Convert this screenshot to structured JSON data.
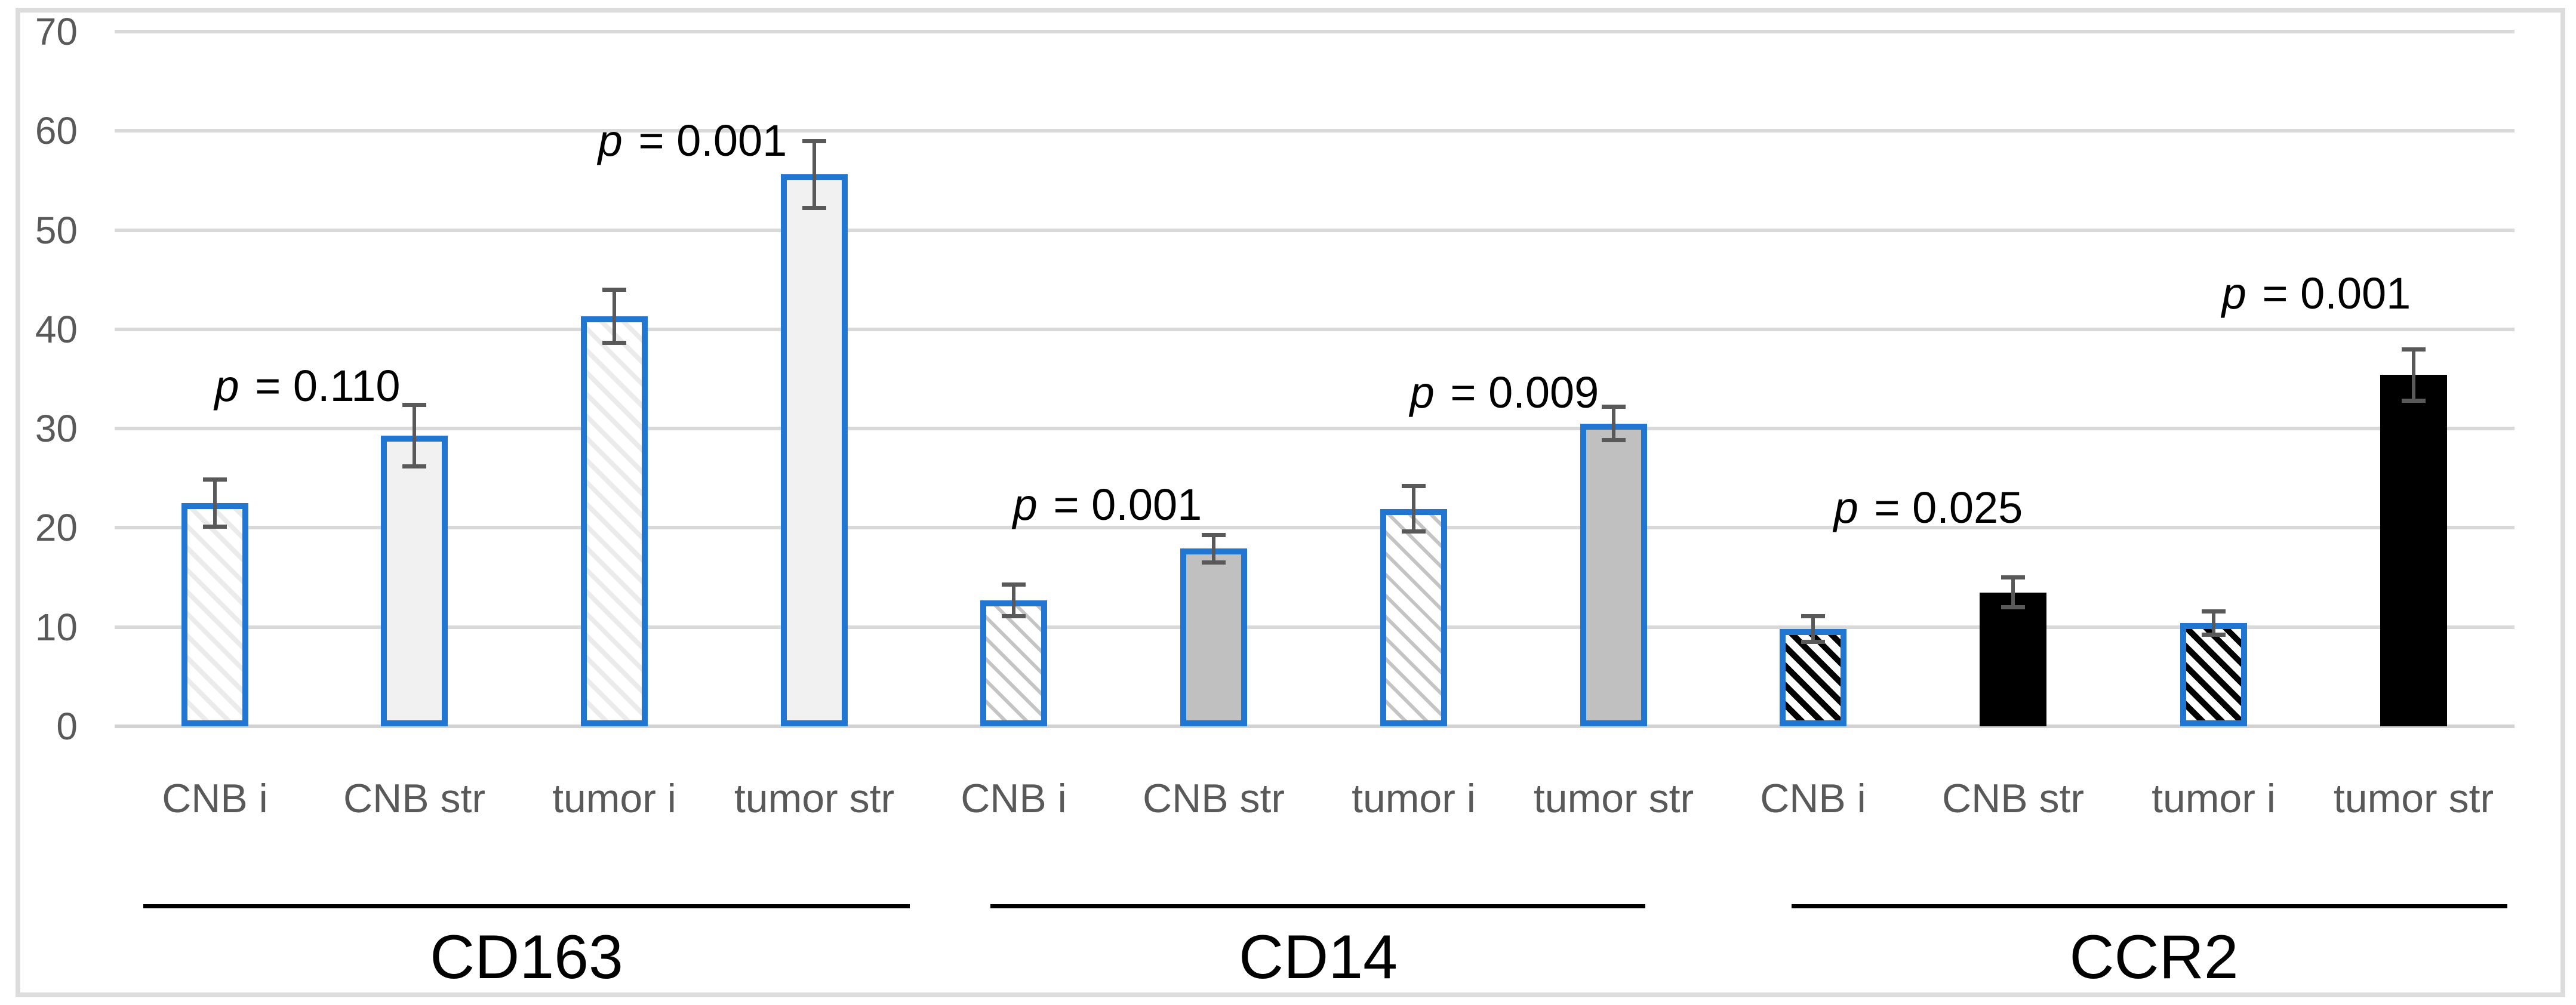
{
  "chart_data": {
    "type": "bar",
    "title": "",
    "xlabel": "",
    "ylabel": "",
    "ylim": [
      0,
      70
    ],
    "yticks": [
      0,
      10,
      20,
      30,
      40,
      50,
      60,
      70
    ],
    "grid": true,
    "legend_position": "none",
    "colors": {
      "bar_border_blue": "#2176D1",
      "error_bar": "#595959",
      "gridline": "#D9D9D9",
      "axis_text": "#595959",
      "annotation_text": "#000000",
      "solid_light_fill": "#F1F1F1",
      "solid_mid_fill": "#C0C0C0",
      "solid_black_fill": "#000000",
      "hatch_light_line": "#EBEBEB",
      "hatch_mid_line": "#C4C4C4",
      "hatch_black_line": "#000000",
      "frame_border": "#DCDCDC"
    },
    "groups": [
      {
        "name": "CD163",
        "categories": [
          "CNB i",
          "CNB str",
          "tumor i",
          "tumor str"
        ],
        "values": [
          22.5,
          29.3,
          41.3,
          55.6
        ],
        "errors": [
          2.6,
          3.3,
          2.9,
          3.6
        ],
        "styles": [
          "hatch-light",
          "solid-light",
          "hatch-light",
          "solid-light"
        ],
        "p_annotations": [
          {
            "prefix": "p",
            "text": " = 0.110",
            "pair": [
              0,
              1
            ],
            "label_x": 515,
            "label_y": 34.3
          },
          {
            "prefix": "p",
            "text": " = 0.001",
            "pair": [
              2,
              3
            ],
            "label_x": 1160,
            "label_y": 59.0
          }
        ]
      },
      {
        "name": "CD14",
        "categories": [
          "CNB i",
          "CNB str",
          "tumor i",
          "tumor str"
        ],
        "values": [
          12.7,
          17.9,
          21.9,
          30.5
        ],
        "errors": [
          1.8,
          1.6,
          2.5,
          1.9
        ],
        "styles": [
          "hatch-mid",
          "solid-mid",
          "hatch-mid",
          "solid-mid"
        ],
        "p_annotations": [
          {
            "prefix": "p",
            "text": " = 0.001",
            "pair": [
              0,
              1
            ],
            "label_x": 1855,
            "label_y": 22.3
          },
          {
            "prefix": "p",
            "text": " = 0.009",
            "pair": [
              2,
              3
            ],
            "label_x": 2520,
            "label_y": 33.6
          }
        ]
      },
      {
        "name": "CCR2",
        "categories": [
          "CNB i",
          "CNB str",
          "tumor i",
          "tumor str"
        ],
        "values": [
          9.8,
          13.5,
          10.4,
          35.4
        ],
        "errors": [
          1.5,
          1.7,
          1.4,
          2.8
        ],
        "styles": [
          "hatch-black",
          "solid-black",
          "hatch-black",
          "solid-black"
        ],
        "p_annotations": [
          {
            "prefix": "p",
            "text": " = 0.025",
            "pair": [
              0,
              1
            ],
            "label_x": 3230,
            "label_y": 22.0
          },
          {
            "prefix": "p",
            "text": " = 0.001",
            "pair": [
              2,
              3
            ],
            "label_x": 3880,
            "label_y": 43.6
          }
        ]
      }
    ]
  }
}
